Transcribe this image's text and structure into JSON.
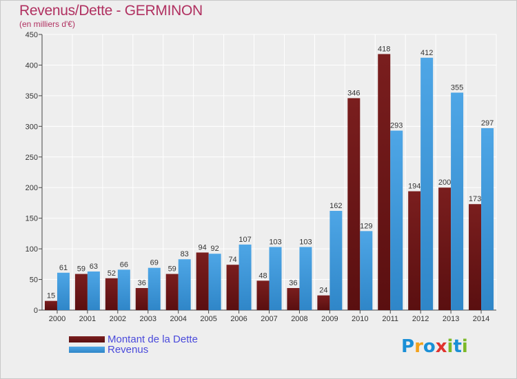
{
  "header": {
    "title": "Revenus/Dette - GERMINON",
    "subtitle": "(en milliers d'€)"
  },
  "legend": {
    "debt_label": "Montant de la Dette",
    "revenue_label": "Revenus"
  },
  "logo": {
    "letters": [
      "P",
      "r",
      "o",
      "x",
      "i",
      "t",
      "i"
    ],
    "colors": [
      "#1a8fd6",
      "#f3a21b",
      "#1a8fd6",
      "#e0332e",
      "#7cb928",
      "#1a8fd6",
      "#7cb928"
    ]
  },
  "colors": {
    "debt": "#7a1e1e",
    "debt_dark": "#5a0f10",
    "revenue": "#4ea6e6",
    "revenue_dark": "#2f86c8",
    "title": "#b03060",
    "grid": "#ffffff"
  },
  "chart_data": {
    "type": "bar",
    "title": "Revenus/Dette - GERMINON",
    "subtitle": "(en milliers d'€)",
    "categories": [
      "2000",
      "2001",
      "2002",
      "2003",
      "2004",
      "2005",
      "2006",
      "2007",
      "2008",
      "2009",
      "2010",
      "2011",
      "2012",
      "2013",
      "2014"
    ],
    "series": [
      {
        "name": "Montant de la Dette",
        "values": [
          15,
          59,
          52,
          36,
          59,
          94,
          74,
          48,
          36,
          24,
          346,
          418,
          194,
          200,
          173
        ]
      },
      {
        "name": "Revenus",
        "values": [
          61,
          63,
          66,
          69,
          83,
          92,
          107,
          103,
          103,
          162,
          129,
          293,
          412,
          355,
          297
        ]
      }
    ],
    "ylim": [
      0,
      450
    ],
    "yticks": [
      0,
      50,
      100,
      150,
      200,
      250,
      300,
      350,
      400,
      450
    ],
    "grid": true,
    "legend_position": "bottom-left"
  }
}
